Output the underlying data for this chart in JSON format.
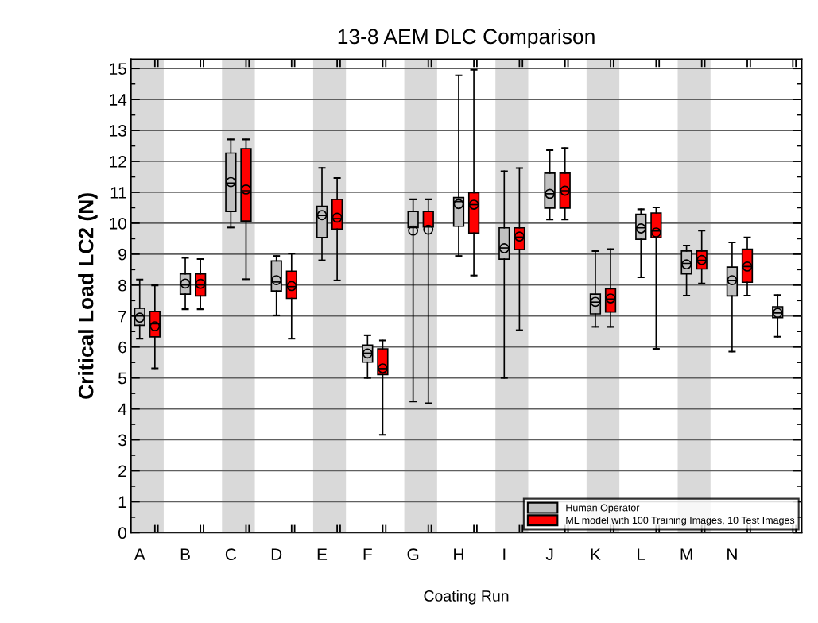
{
  "chart_data": {
    "type": "box",
    "title": "13-8 AEM DLC Comparison",
    "xlabel": "Coating Run",
    "ylabel": "Critical Load LC2 (N)",
    "categories": [
      "A",
      "B",
      "C",
      "D",
      "E",
      "F",
      "G",
      "H",
      "I",
      "J",
      "K",
      "L",
      "M",
      "N",
      null
    ],
    "ylim": [
      0,
      15.3
    ],
    "yticks": [
      0,
      1,
      2,
      3,
      4,
      5,
      6,
      7,
      8,
      9,
      10,
      11,
      12,
      13,
      14,
      15
    ],
    "grid": "y",
    "legend": "bottom right",
    "marker": "circle",
    "bands": [
      {
        "axis": "x",
        "from": "A",
        "to": "A",
        "color": "#d9d9d9"
      },
      {
        "axis": "x",
        "from": "C",
        "to": "C",
        "color": "#d9d9d9"
      },
      {
        "axis": "x",
        "from": "E",
        "to": "E",
        "color": "#d9d9d9"
      },
      {
        "axis": "x",
        "from": "G",
        "to": "G",
        "color": "#d9d9d9"
      },
      {
        "axis": "x",
        "from": "I",
        "to": "I",
        "color": "#d9d9d9"
      },
      {
        "axis": "x",
        "from": "K",
        "to": "K",
        "color": "#d9d9d9"
      },
      {
        "axis": "x",
        "from": "M",
        "to": "M",
        "color": "#d9d9d9"
      }
    ],
    "series": [
      {
        "name": "Human Operator",
        "color": "#c0c0c0",
        "boxes": [
          {
            "low": 6.27,
            "q1": 6.7,
            "median": 7.0,
            "q3": 7.25,
            "high": 8.18,
            "mean": 6.95
          },
          {
            "low": 7.22,
            "q1": 7.71,
            "median": 8.0,
            "q3": 8.36,
            "high": 8.88,
            "mean": 8.05
          },
          {
            "low": 9.86,
            "q1": 10.38,
            "median": 11.3,
            "q3": 12.27,
            "high": 12.71,
            "mean": 11.33
          },
          {
            "low": 7.02,
            "q1": 7.81,
            "median": 8.1,
            "q3": 8.78,
            "high": 8.94,
            "mean": 8.16
          },
          {
            "low": 8.8,
            "q1": 9.54,
            "median": 10.25,
            "q3": 10.55,
            "high": 11.79,
            "mean": 10.26
          },
          {
            "low": 5.0,
            "q1": 5.51,
            "median": 5.8,
            "q3": 6.06,
            "high": 6.38,
            "mean": 5.79
          },
          {
            "low": 4.24,
            "q1": 9.86,
            "median": 9.9,
            "q3": 10.38,
            "high": 10.77,
            "mean": 9.76
          },
          {
            "low": 8.94,
            "q1": 9.9,
            "median": 10.7,
            "q3": 10.83,
            "high": 14.78,
            "mean": 10.62
          },
          {
            "low": 5.0,
            "q1": 8.84,
            "median": 9.2,
            "q3": 9.85,
            "high": 11.68,
            "mean": 9.19
          },
          {
            "low": 10.12,
            "q1": 10.49,
            "median": 10.95,
            "q3": 11.62,
            "high": 12.36,
            "mean": 10.95
          },
          {
            "low": 6.65,
            "q1": 7.07,
            "median": 7.45,
            "q3": 7.71,
            "high": 9.1,
            "mean": 7.46
          },
          {
            "low": 8.25,
            "q1": 9.48,
            "median": 9.85,
            "q3": 10.29,
            "high": 10.45,
            "mean": 9.83
          },
          {
            "low": 7.66,
            "q1": 8.36,
            "median": 8.7,
            "q3": 9.1,
            "high": 9.28,
            "mean": 8.67
          },
          {
            "low": 5.85,
            "q1": 7.65,
            "median": 8.15,
            "q3": 8.58,
            "high": 9.38,
            "mean": 8.16
          },
          {
            "low": 6.33,
            "q1": 6.95,
            "median": 7.1,
            "q3": 7.3,
            "high": 7.68,
            "mean": 7.1
          }
        ]
      },
      {
        "name": "ML model with 100 Training Images, 10 Test Images",
        "color": "#ff0000",
        "boxes": [
          {
            "low": 5.31,
            "q1": 6.33,
            "median": 6.75,
            "q3": 7.15,
            "high": 7.99,
            "mean": 6.67
          },
          {
            "low": 7.22,
            "q1": 7.65,
            "median": 8.0,
            "q3": 8.36,
            "high": 8.84,
            "mean": 8.04
          },
          {
            "low": 8.19,
            "q1": 10.07,
            "median": 11.05,
            "q3": 12.41,
            "high": 12.71,
            "mean": 11.09
          },
          {
            "low": 6.27,
            "q1": 7.57,
            "median": 7.95,
            "q3": 8.45,
            "high": 9.02,
            "mean": 7.97
          },
          {
            "low": 8.15,
            "q1": 9.81,
            "median": 10.15,
            "q3": 10.77,
            "high": 11.46,
            "mean": 10.18
          },
          {
            "low": 3.16,
            "q1": 5.11,
            "median": 5.3,
            "q3": 5.94,
            "high": 6.21,
            "mean": 5.31
          },
          {
            "low": 4.18,
            "q1": 9.88,
            "median": 9.9,
            "q3": 10.38,
            "high": 10.77,
            "mean": 9.79
          },
          {
            "low": 8.31,
            "q1": 9.68,
            "median": 10.6,
            "q3": 10.99,
            "high": 14.96,
            "mean": 10.6
          },
          {
            "low": 6.54,
            "q1": 9.15,
            "median": 9.55,
            "q3": 9.85,
            "high": 11.78,
            "mean": 9.57
          },
          {
            "low": 10.12,
            "q1": 10.49,
            "median": 11.05,
            "q3": 11.62,
            "high": 12.43,
            "mean": 11.05
          },
          {
            "low": 6.65,
            "q1": 7.13,
            "median": 7.55,
            "q3": 7.88,
            "high": 9.16,
            "mean": 7.57
          },
          {
            "low": 5.94,
            "q1": 9.53,
            "median": 9.75,
            "q3": 10.33,
            "high": 10.51,
            "mean": 9.7
          },
          {
            "low": 8.05,
            "q1": 8.52,
            "median": 8.8,
            "q3": 9.1,
            "high": 9.76,
            "mean": 8.81
          },
          {
            "low": 7.66,
            "q1": 8.09,
            "median": 8.6,
            "q3": 9.16,
            "high": 9.54,
            "mean": 8.6
          },
          null
        ]
      }
    ]
  }
}
